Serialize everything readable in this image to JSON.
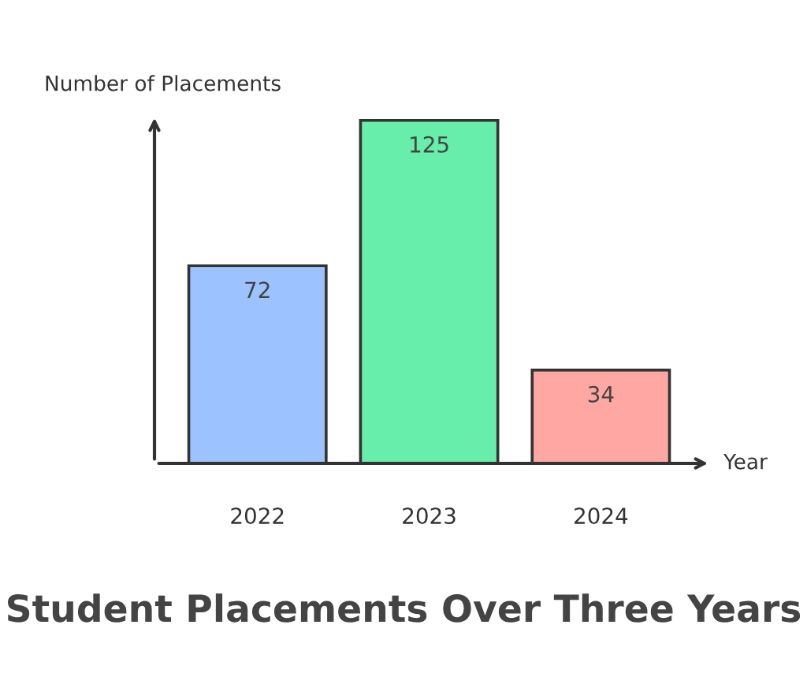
{
  "chart_data": {
    "type": "bar",
    "title": "Student Placements Over Three Years",
    "xlabel": "Year",
    "ylabel": "Number of Placements",
    "categories": [
      "2022",
      "2023",
      "2024"
    ],
    "values": [
      72,
      125,
      34
    ],
    "colors": [
      "#9cc2ff",
      "#66eeaa",
      "#ffa8a3"
    ],
    "data_labels": true,
    "grid": false
  }
}
